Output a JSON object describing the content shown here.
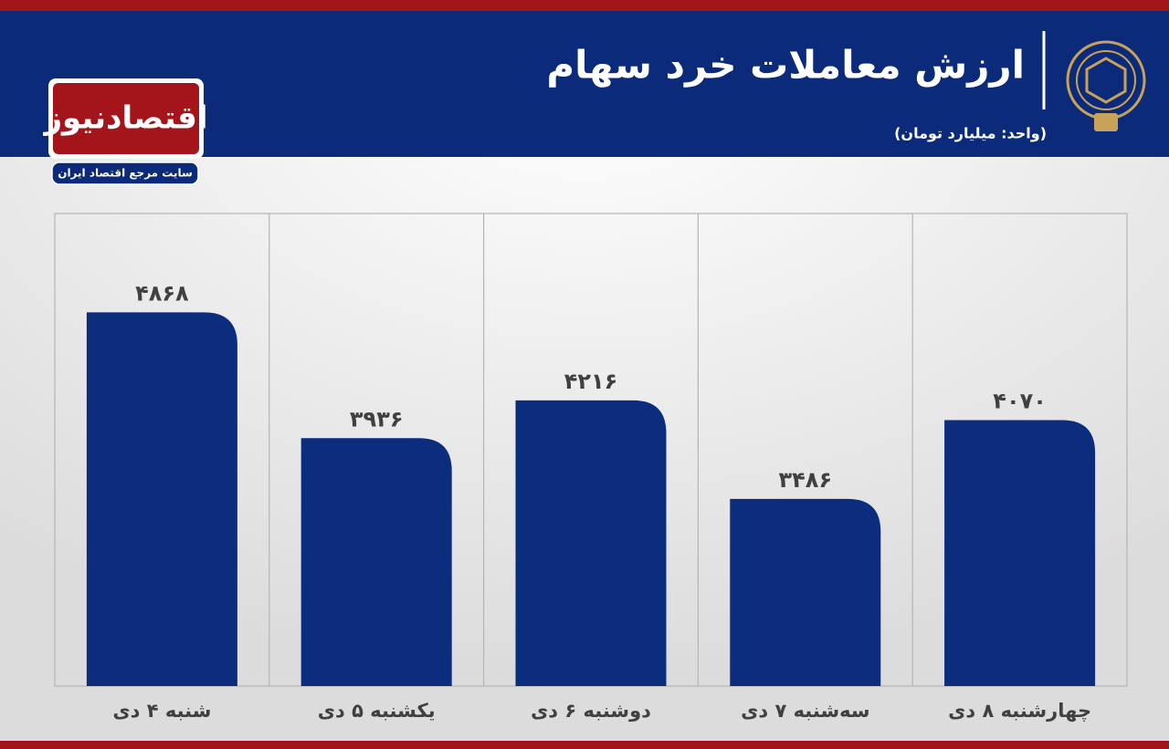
{
  "header": {
    "logo_name": "اقتصادنیوز",
    "logo_tagline": "سایت مرجع اقتصاد ایران"
  },
  "chart_data": {
    "type": "bar",
    "title": "ارزش معاملات خرد سهام",
    "subtitle": "(واحد: میلیارد تومان)",
    "categories": [
      "شنبه ۴ دی",
      "یکشنبه ۵ دی",
      "دوشنبه ۶ دی",
      "سه‌شنبه ۷ دی",
      "چهارشنبه ۸ دی"
    ],
    "values": [
      4868,
      3936,
      4216,
      3486,
      4070
    ],
    "value_labels": [
      "۴۸۶۸",
      "۳۹۳۶",
      "۴۲۱۶",
      "۳۴۸۶",
      "۴۰۷۰"
    ],
    "color": "#0c2c7e",
    "ylim": [
      2100,
      5600
    ]
  }
}
